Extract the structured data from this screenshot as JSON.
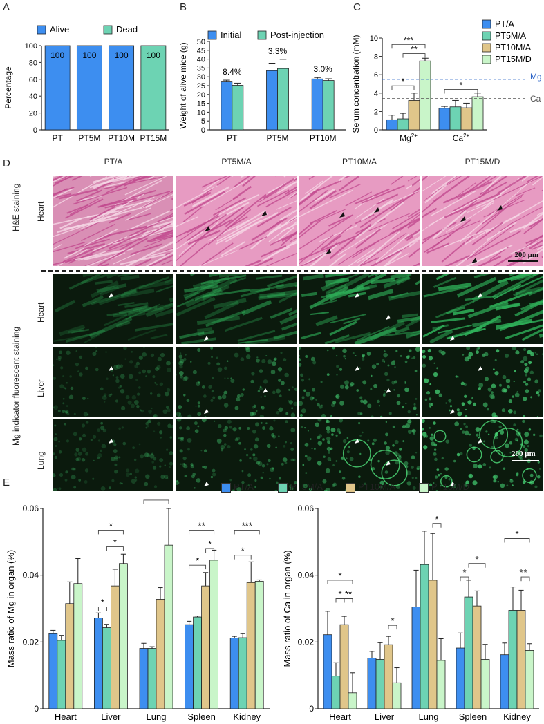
{
  "panels": {
    "A": "A",
    "B": "B",
    "C": "C",
    "D": "D",
    "E": "E"
  },
  "chart_data": [
    {
      "id": "A",
      "type": "bar",
      "categories": [
        "PT",
        "PT5M",
        "PT10M",
        "PT15M"
      ],
      "series": [
        {
          "name": "Alive",
          "values": [
            100,
            100,
            100,
            0
          ],
          "color": "#3d8ef0"
        },
        {
          "name": "Dead",
          "values": [
            0,
            0,
            0,
            100
          ],
          "color": "#6dd3b3"
        }
      ],
      "bar_labels": [
        "100",
        "100",
        "100",
        "100"
      ],
      "ylabel": "Percentage",
      "yticks": [
        "0",
        "20",
        "40",
        "60",
        "80",
        "100"
      ],
      "ylim": [
        0,
        100
      ]
    },
    {
      "id": "B",
      "type": "bar",
      "categories": [
        "PT",
        "PT5M",
        "PT10M"
      ],
      "series": [
        {
          "name": "Initial",
          "values": [
            27.5,
            33.5,
            28.8
          ],
          "errors": [
            0.6,
            4.2,
            0.8
          ],
          "color": "#3d8ef0"
        },
        {
          "name": "Post-injection",
          "values": [
            25.2,
            34.7,
            27.9
          ],
          "errors": [
            1.2,
            5.2,
            1.0
          ],
          "color": "#6dd3b3"
        }
      ],
      "annotations": [
        "8.4%",
        "3.3%",
        "3.0%"
      ],
      "ylabel": "Weight of alive mice (g)",
      "yticks": [
        "0",
        "5",
        "10",
        "15",
        "20",
        "25",
        "30",
        "35",
        "40",
        "45",
        "50"
      ],
      "ylim": [
        0,
        50
      ]
    },
    {
      "id": "C",
      "type": "bar",
      "categories": [
        "Mg",
        "Ca"
      ],
      "category_superscript": "2+",
      "series": [
        {
          "name": "PT/A",
          "values": [
            1.1,
            2.35
          ],
          "errors": [
            0.5,
            0.2
          ],
          "color": "#3d8ef0"
        },
        {
          "name": "PT5M/A",
          "values": [
            1.2,
            2.5
          ],
          "errors": [
            0.6,
            0.7
          ],
          "color": "#6dd3b3"
        },
        {
          "name": "PT10M/A",
          "values": [
            3.2,
            2.4
          ],
          "errors": [
            0.8,
            0.5
          ],
          "color": "#e0c68a"
        },
        {
          "name": "PT15M/D",
          "values": [
            7.5,
            3.6
          ],
          "errors": [
            0.3,
            0.4
          ],
          "color": "#c9f5c9"
        }
      ],
      "ylabel": "Serum concentration (mM)",
      "yticks": [
        "0",
        "2",
        "4",
        "6",
        "8",
        "10"
      ],
      "ylim": [
        0,
        10
      ],
      "reference_lines": [
        {
          "label": "Mg",
          "value": 5.5,
          "color": "#2f67c9"
        },
        {
          "label": "Ca",
          "value": 3.4,
          "color": "#555555"
        }
      ],
      "significance": [
        "***",
        "**",
        "*",
        "*"
      ]
    },
    {
      "id": "E1",
      "type": "bar",
      "categories": [
        "Heart",
        "Liver",
        "Lung",
        "Spleen",
        "Kidney"
      ],
      "series": [
        {
          "name": "PT/A",
          "values": [
            0.0225,
            0.0272,
            0.0181,
            0.0252,
            0.0212
          ],
          "errors": [
            0.001,
            0.0015,
            0.0015,
            0.001,
            0.0005
          ],
          "color": "#3d8ef0"
        },
        {
          "name": "PT5M/A",
          "values": [
            0.0205,
            0.0243,
            0.0181,
            0.0275,
            0.0213
          ],
          "errors": [
            0.0015,
            0.001,
            0.0005,
            0.0003,
            0.0012
          ],
          "color": "#6dd3b3"
        },
        {
          "name": "PT10M/A",
          "values": [
            0.0315,
            0.0368,
            0.0328,
            0.0368,
            0.0378
          ],
          "errors": [
            0.0065,
            0.005,
            0.0035,
            0.004,
            0.0062
          ],
          "color": "#e0c68a"
        },
        {
          "name": "PT15M/D",
          "values": [
            0.0375,
            0.0435,
            0.049,
            0.0445,
            0.0382
          ],
          "errors": [
            0.0075,
            0.0028,
            0.011,
            0.003,
            0.0004
          ],
          "color": "#c9f5c9"
        }
      ],
      "ylabel": "Mass ratio of Mg in organ (%)",
      "yticks": [
        "0",
        "0.02",
        "0.04",
        "0.06"
      ],
      "ylim": [
        0,
        0.06
      ],
      "significance": [
        "*",
        "*",
        "*",
        "*",
        "**",
        "*",
        "*",
        "***",
        "*"
      ]
    },
    {
      "id": "E2",
      "type": "bar",
      "categories": [
        "Heart",
        "Liver",
        "Lung",
        "Spleen",
        "Kidney"
      ],
      "series": [
        {
          "name": "PT/A",
          "values": [
            0.0222,
            0.0152,
            0.0305,
            0.0182,
            0.0162
          ],
          "errors": [
            0.007,
            0.002,
            0.011,
            0.0045,
            0.0035
          ],
          "color": "#3d8ef0"
        },
        {
          "name": "PT5M/A",
          "values": [
            0.0098,
            0.0148,
            0.0432,
            0.0335,
            0.0295
          ],
          "errors": [
            0.004,
            0.005,
            0.01,
            0.005,
            0.007
          ],
          "color": "#6dd3b3"
        },
        {
          "name": "PT10M/A",
          "values": [
            0.0252,
            0.0192,
            0.0385,
            0.0308,
            0.0295
          ],
          "errors": [
            0.0025,
            0.0025,
            0.014,
            0.0045,
            0.006
          ],
          "color": "#e0c68a"
        },
        {
          "name": "PT15M/D",
          "values": [
            0.0048,
            0.0078,
            0.0145,
            0.0148,
            0.0175
          ],
          "errors": [
            0.006,
            0.0045,
            0.0065,
            0.0045,
            0.002
          ],
          "color": "#c9f5c9"
        }
      ],
      "ylabel": "Mass ratio of Ca in organ (%)",
      "yticks": [
        "0",
        "0.02",
        "0.04",
        "0.06"
      ],
      "ylim": [
        0,
        0.06
      ],
      "significance": [
        "*",
        "*",
        "**",
        "*",
        "*",
        "*",
        "*",
        "*",
        "*",
        "*"
      ]
    }
  ],
  "panel_d": {
    "columns": [
      "PT/A",
      "PT5M/A",
      "PT10M/A",
      "PT15M/D"
    ],
    "he_group_label": "H&E staining",
    "he_row_label": "Heart",
    "fluor_group_label": "Mg indicator fluorescent staining",
    "fluor_row_labels": [
      "Heart",
      "Liver",
      "Lung"
    ],
    "scale_bar_he": "200 μm",
    "scale_bar_fluor": "200 μm"
  },
  "legend_e": [
    "PT/A",
    "PT5M/A",
    "PT10M/A",
    "PT15M/D"
  ]
}
